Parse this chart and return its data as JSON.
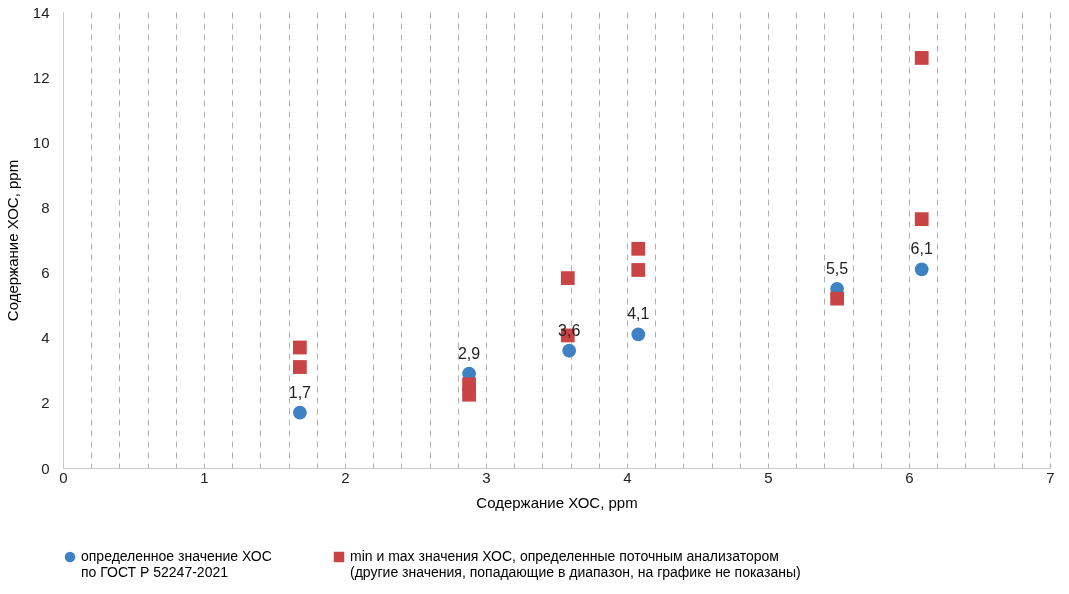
{
  "chart_data": {
    "type": "scatter",
    "xlabel": "Содержание ХОС, ppm",
    "ylabel": "Содержание ХОС, ppm",
    "xlim": [
      0,
      7
    ],
    "ylim": [
      0,
      14
    ],
    "xticks": [
      0,
      {
        "value": 0.2,
        "label": null
      },
      {
        "value": 0.4,
        "label": null
      },
      {
        "value": 0.6,
        "label": null
      },
      {
        "value": 0.8,
        "label": null
      },
      1,
      {
        "value": 1.2,
        "label": null
      },
      {
        "value": 1.4,
        "label": null
      },
      {
        "value": 1.6,
        "label": null
      },
      {
        "value": 1.8,
        "label": null
      },
      2,
      {
        "value": 2.2,
        "label": null
      },
      {
        "value": 2.4,
        "label": null
      },
      {
        "value": 2.6,
        "label": null
      },
      {
        "value": 2.8,
        "label": null
      },
      3,
      {
        "value": 3.2,
        "label": null
      },
      {
        "value": 3.4,
        "label": null
      },
      {
        "value": 3.6,
        "label": null
      },
      {
        "value": 3.8,
        "label": null
      },
      4,
      {
        "value": 4.2,
        "label": null
      },
      {
        "value": 4.4,
        "label": null
      },
      {
        "value": 4.6,
        "label": null
      },
      {
        "value": 4.8,
        "label": null
      },
      5,
      {
        "value": 5.2,
        "label": null
      },
      {
        "value": 5.4,
        "label": null
      },
      {
        "value": 5.6,
        "label": null
      },
      {
        "value": 5.8,
        "label": null
      },
      6,
      {
        "value": 6.2,
        "label": null
      },
      {
        "value": 6.4,
        "label": null
      },
      {
        "value": 6.6,
        "label": null
      },
      {
        "value": 6.8,
        "label": null
      },
      7
    ],
    "yticks": [
      0,
      2,
      4,
      6,
      8,
      10,
      12,
      14
    ],
    "grid": "x",
    "legend": "bottom",
    "series": [
      {
        "name": "определенное значение ХОС по ГОСТ Р 52247-2021",
        "color": "#3f82c4",
        "marker": "circle",
        "x": [
          1.68,
          2.88,
          3.59,
          4.08,
          5.49,
          6.09
        ],
        "values": [
          1.7,
          2.9,
          3.6,
          4.1,
          5.5,
          6.1
        ],
        "value_labels": [
          "1,7",
          "2,9",
          "3,6",
          "4,1",
          "5,5",
          "6,1"
        ]
      },
      {
        "name": "min и max значения ХОС, определенные поточным анализатором (другие значения, попадающие в диапазон, на графике не показаны)",
        "color": "#c94444",
        "marker": "square",
        "x": [
          1.68,
          1.68,
          2.88,
          2.88,
          3.58,
          3.58,
          4.08,
          4.08,
          5.49,
          6.09,
          6.09
        ],
        "values": [
          3.7,
          3.1,
          2.57,
          2.25,
          5.83,
          4.07,
          6.73,
          6.08,
          5.2,
          12.59,
          7.64
        ]
      }
    ]
  }
}
